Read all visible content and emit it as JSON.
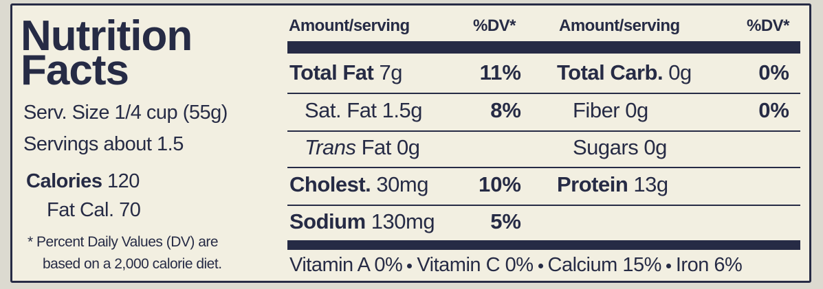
{
  "title": [
    "Nutrition",
    "Facts"
  ],
  "serving_size": "Serv. Size 1/4 cup (55g)",
  "servings": "Servings about 1.5",
  "calories": {
    "label": "Calories",
    "amount": "120"
  },
  "fat_calories": "Fat Cal. 70",
  "footnote": [
    "* Percent Daily Values (DV) are",
    "based on a 2,000 calorie diet."
  ],
  "header": {
    "amount": "Amount/serving",
    "dv": "%DV*"
  },
  "left_rows": [
    {
      "label": "Total Fat",
      "amount": "7g",
      "dv": "11%"
    },
    {
      "label": "Sat. Fat",
      "amount": "1.5g",
      "dv": "8%"
    },
    {
      "label_italic": "Trans",
      "label": "Fat",
      "amount": "0g"
    },
    {
      "label": "Cholest.",
      "amount": "30mg",
      "dv": "10%"
    },
    {
      "label": "Sodium",
      "amount": "130mg",
      "dv": "5%"
    }
  ],
  "right_rows": [
    {
      "label": "Total Carb.",
      "amount": "0g",
      "dv": "0%"
    },
    {
      "label": "Fiber",
      "amount": "0g",
      "dv": "0%"
    },
    {
      "label": "Sugars",
      "amount": "0g"
    },
    {
      "label": "Protein",
      "amount": "13g"
    }
  ],
  "vitamins": [
    "Vitamin A 0%",
    "Vitamin C 0%",
    "Calcium 15%",
    "Iron 6%"
  ]
}
